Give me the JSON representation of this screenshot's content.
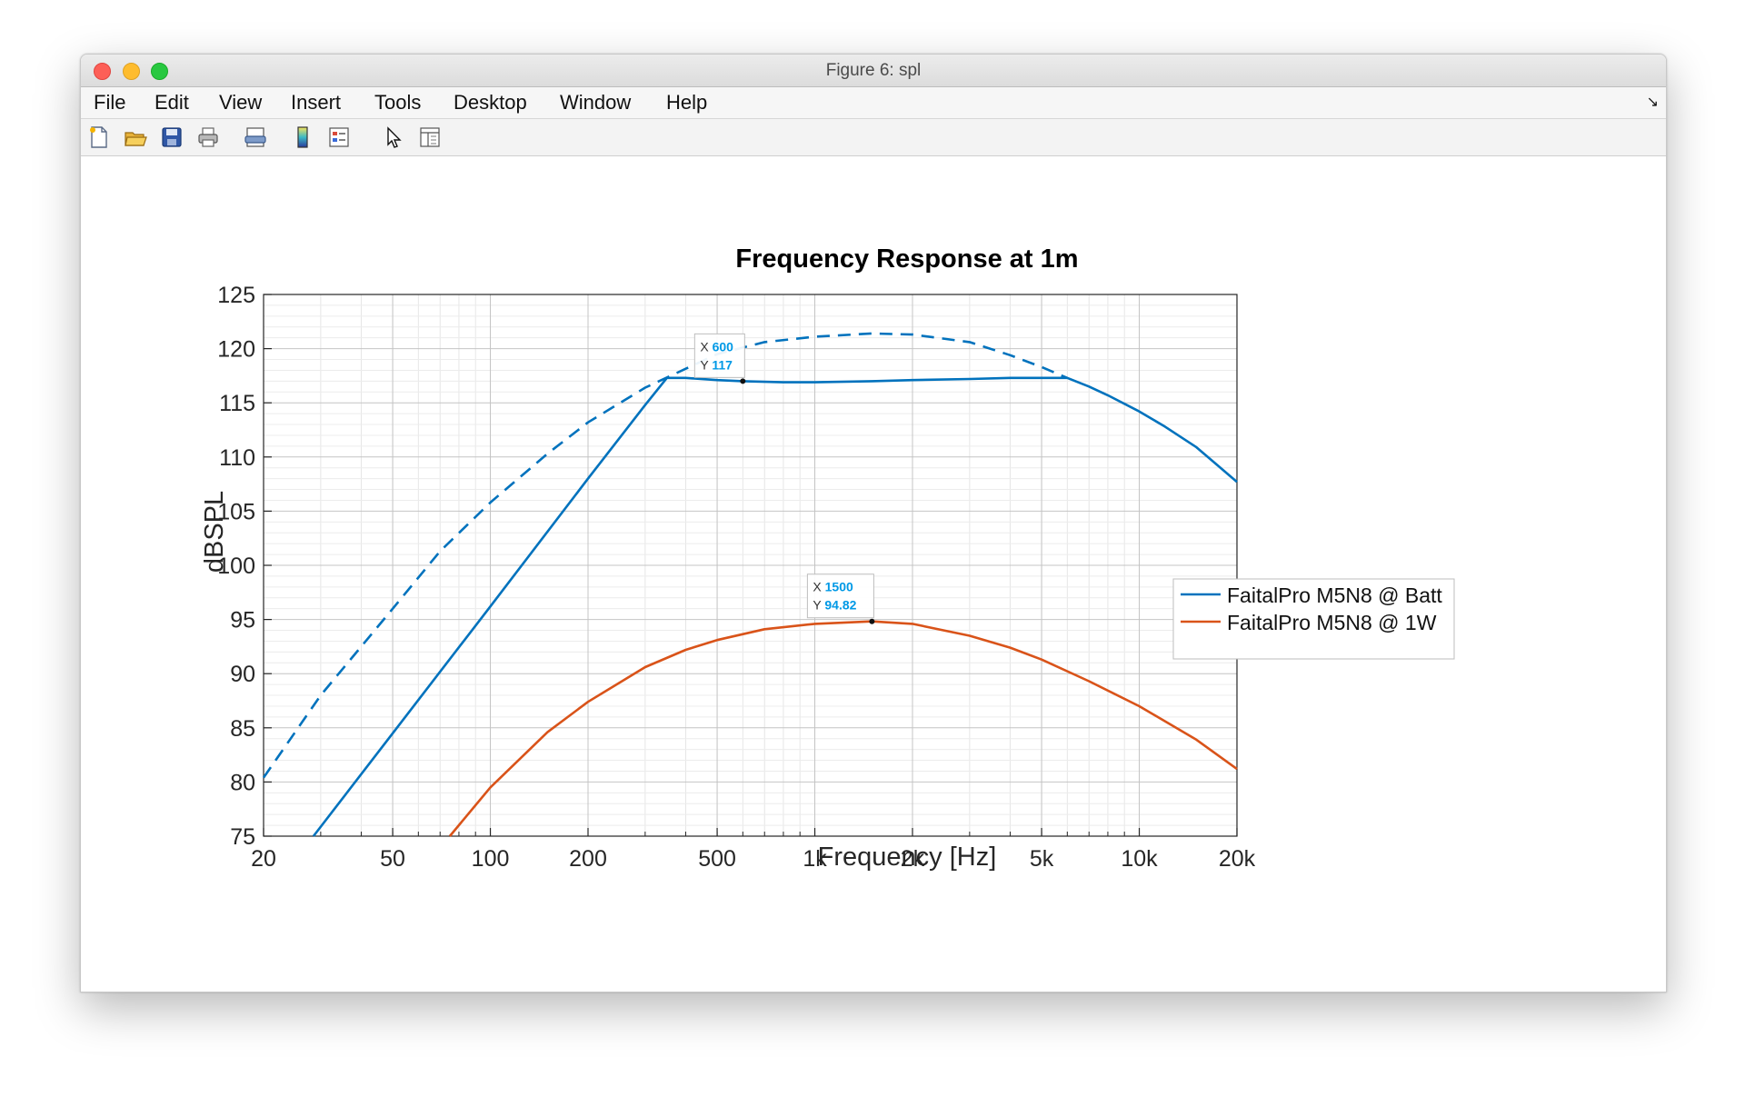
{
  "window": {
    "title": "Figure 6: spl",
    "menu": [
      "File",
      "Edit",
      "View",
      "Insert",
      "Tools",
      "Desktop",
      "Window",
      "Help"
    ],
    "toolbar_icons": [
      "new-figure-icon",
      "open-file-icon",
      "save-icon",
      "print-icon",
      "print-preview-icon",
      "colorbar-icon",
      "legend-icon",
      "select-arrow-icon",
      "property-editor-icon"
    ]
  },
  "chart_data": {
    "type": "line",
    "title": "Frequency Response at 1m",
    "xlabel": "Frequency [Hz]",
    "ylabel": "dBSPL",
    "xscale": "log",
    "xlim": [
      20,
      20000
    ],
    "ylim": [
      75,
      125
    ],
    "xticks": [
      20,
      50,
      100,
      200,
      500,
      1000,
      2000,
      5000,
      10000,
      20000
    ],
    "xtick_labels": [
      "20",
      "50",
      "100",
      "200",
      "500",
      "1k",
      "2k",
      "5k",
      "10k",
      "20k"
    ],
    "yticks": [
      75,
      80,
      85,
      90,
      95,
      100,
      105,
      110,
      115,
      120,
      125
    ],
    "grid": true,
    "minor_grid": true,
    "legend_position": "right, lower-middle",
    "series": [
      {
        "name": "FaitalPro M5N8 @ Batt",
        "color": "#0072BD",
        "style": "solid",
        "x": [
          28.5,
          50,
          100,
          200,
          300,
          350,
          400,
          500,
          600,
          800,
          1000,
          1500,
          2000,
          3000,
          4000,
          5000,
          6000,
          7000,
          8000,
          10000,
          12000,
          15000,
          20000
        ],
        "y": [
          75,
          84.5,
          96.2,
          108,
          114.8,
          117.3,
          117.3,
          117.1,
          117,
          116.9,
          116.9,
          117,
          117.1,
          117.2,
          117.3,
          117.3,
          117.3,
          116.5,
          115.7,
          114.2,
          112.8,
          110.9,
          107.7
        ]
      },
      {
        "name": "",
        "color": "#0072BD",
        "style": "dashed",
        "x": [
          20,
          30,
          50,
          70,
          100,
          150,
          200,
          300,
          500,
          700,
          1000,
          1500,
          2000,
          3000,
          4000,
          5000,
          6000
        ],
        "y": [
          80.4,
          88,
          96,
          101.3,
          105.8,
          110.3,
          113.2,
          116.4,
          119.5,
          120.6,
          121.1,
          121.4,
          121.3,
          120.6,
          119.4,
          118.3,
          117.3
        ]
      },
      {
        "name": "FaitalPro M5N8 @ 1W",
        "color": "#D95319",
        "style": "solid",
        "x": [
          75,
          100,
          150,
          200,
          300,
          400,
          500,
          700,
          1000,
          1500,
          2000,
          3000,
          4000,
          5000,
          7000,
          10000,
          15000,
          20000
        ],
        "y": [
          75,
          79.5,
          84.6,
          87.4,
          90.6,
          92.2,
          93.1,
          94.1,
          94.6,
          94.82,
          94.6,
          93.5,
          92.4,
          91.3,
          89.3,
          87,
          83.9,
          81.2
        ]
      }
    ],
    "datatips": [
      {
        "x": 600,
        "y": 117,
        "x_text": "600",
        "y_text": "117",
        "series": 0
      },
      {
        "x": 1500,
        "y": 94.82,
        "x_text": "1500",
        "y_text": "94.82",
        "series": 2
      }
    ]
  }
}
